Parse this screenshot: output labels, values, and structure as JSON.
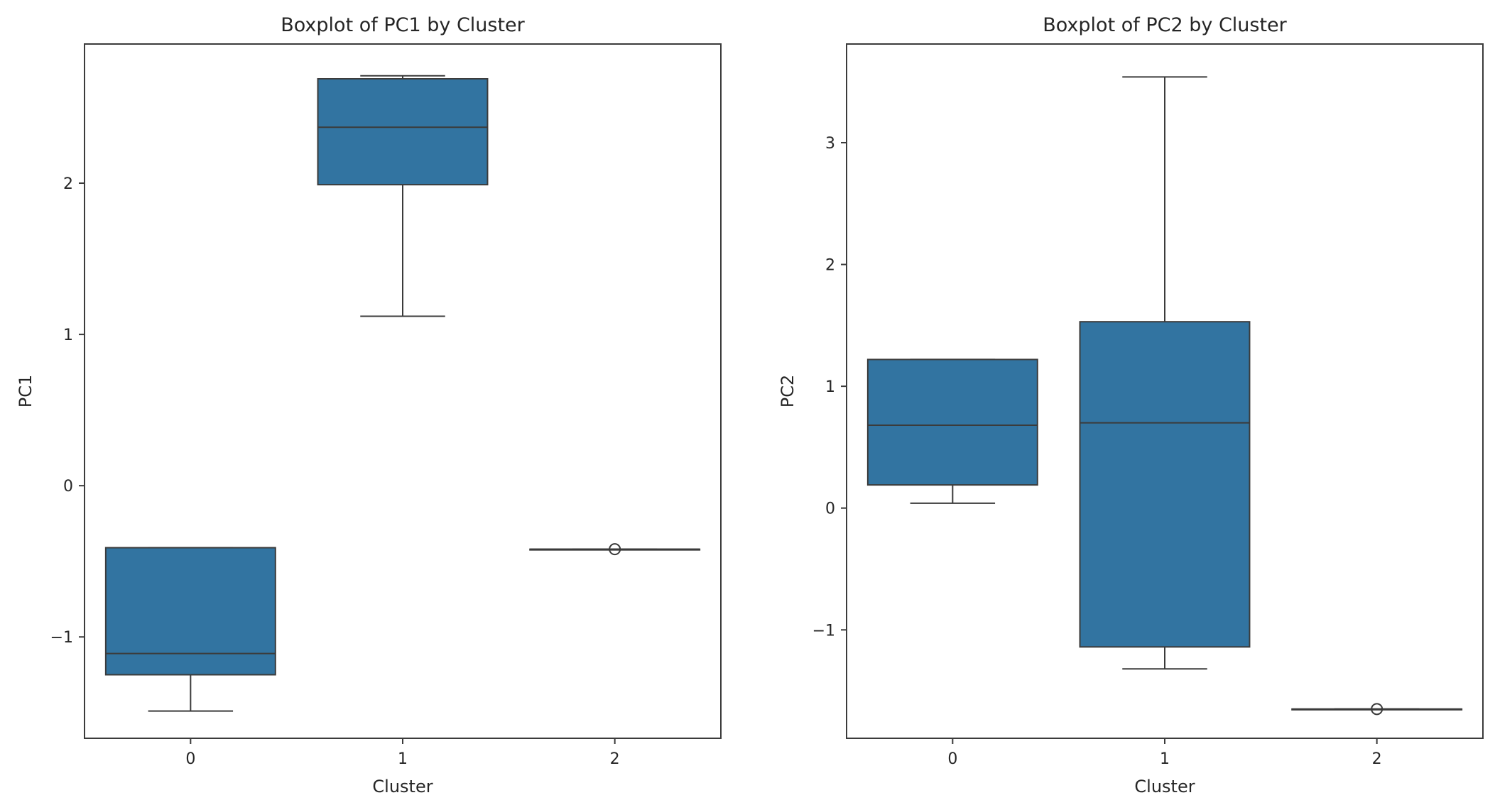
{
  "chart_data": [
    {
      "type": "boxplot",
      "title": "Boxplot of PC1 by Cluster",
      "xlabel": "Cluster",
      "ylabel": "PC1",
      "categories": [
        "0",
        "1",
        "2"
      ],
      "ylim": [
        -1.67,
        2.92
      ],
      "yticks": [
        -1,
        0,
        1,
        2
      ],
      "ytick_labels": [
        "−1",
        "0",
        "1",
        "2"
      ],
      "boxes": [
        {
          "category": "0",
          "whisker_low": -1.49,
          "q1": -1.25,
          "median": -1.11,
          "q3": -0.41,
          "whisker_high": -0.41,
          "outliers": []
        },
        {
          "category": "1",
          "whisker_low": 1.12,
          "q1": 1.99,
          "median": 2.37,
          "q3": 2.69,
          "whisker_high": 2.71,
          "outliers": []
        },
        {
          "category": "2",
          "whisker_low": -0.42,
          "q1": -0.42,
          "median": -0.42,
          "q3": -0.42,
          "whisker_high": -0.42,
          "outliers": [
            -0.42
          ]
        }
      ],
      "color": "#3274a1",
      "grid": false
    },
    {
      "type": "boxplot",
      "title": "Boxplot of PC2 by Cluster",
      "xlabel": "Cluster",
      "ylabel": "PC2",
      "categories": [
        "0",
        "1",
        "2"
      ],
      "ylim": [
        -1.89,
        3.81
      ],
      "yticks": [
        -1,
        0,
        1,
        2,
        3
      ],
      "ytick_labels": [
        "−1",
        "0",
        "1",
        "2",
        "3"
      ],
      "boxes": [
        {
          "category": "0",
          "whisker_low": 0.04,
          "q1": 0.19,
          "median": 0.68,
          "q3": 1.22,
          "whisker_high": 1.22,
          "outliers": []
        },
        {
          "category": "1",
          "whisker_low": -1.32,
          "q1": -1.14,
          "median": 0.7,
          "q3": 1.53,
          "whisker_high": 3.54,
          "outliers": []
        },
        {
          "category": "2",
          "whisker_low": -1.65,
          "q1": -1.65,
          "median": -1.65,
          "q3": -1.65,
          "whisker_high": -1.65,
          "outliers": [
            -1.65
          ]
        }
      ],
      "color": "#3274a1",
      "grid": false
    }
  ]
}
